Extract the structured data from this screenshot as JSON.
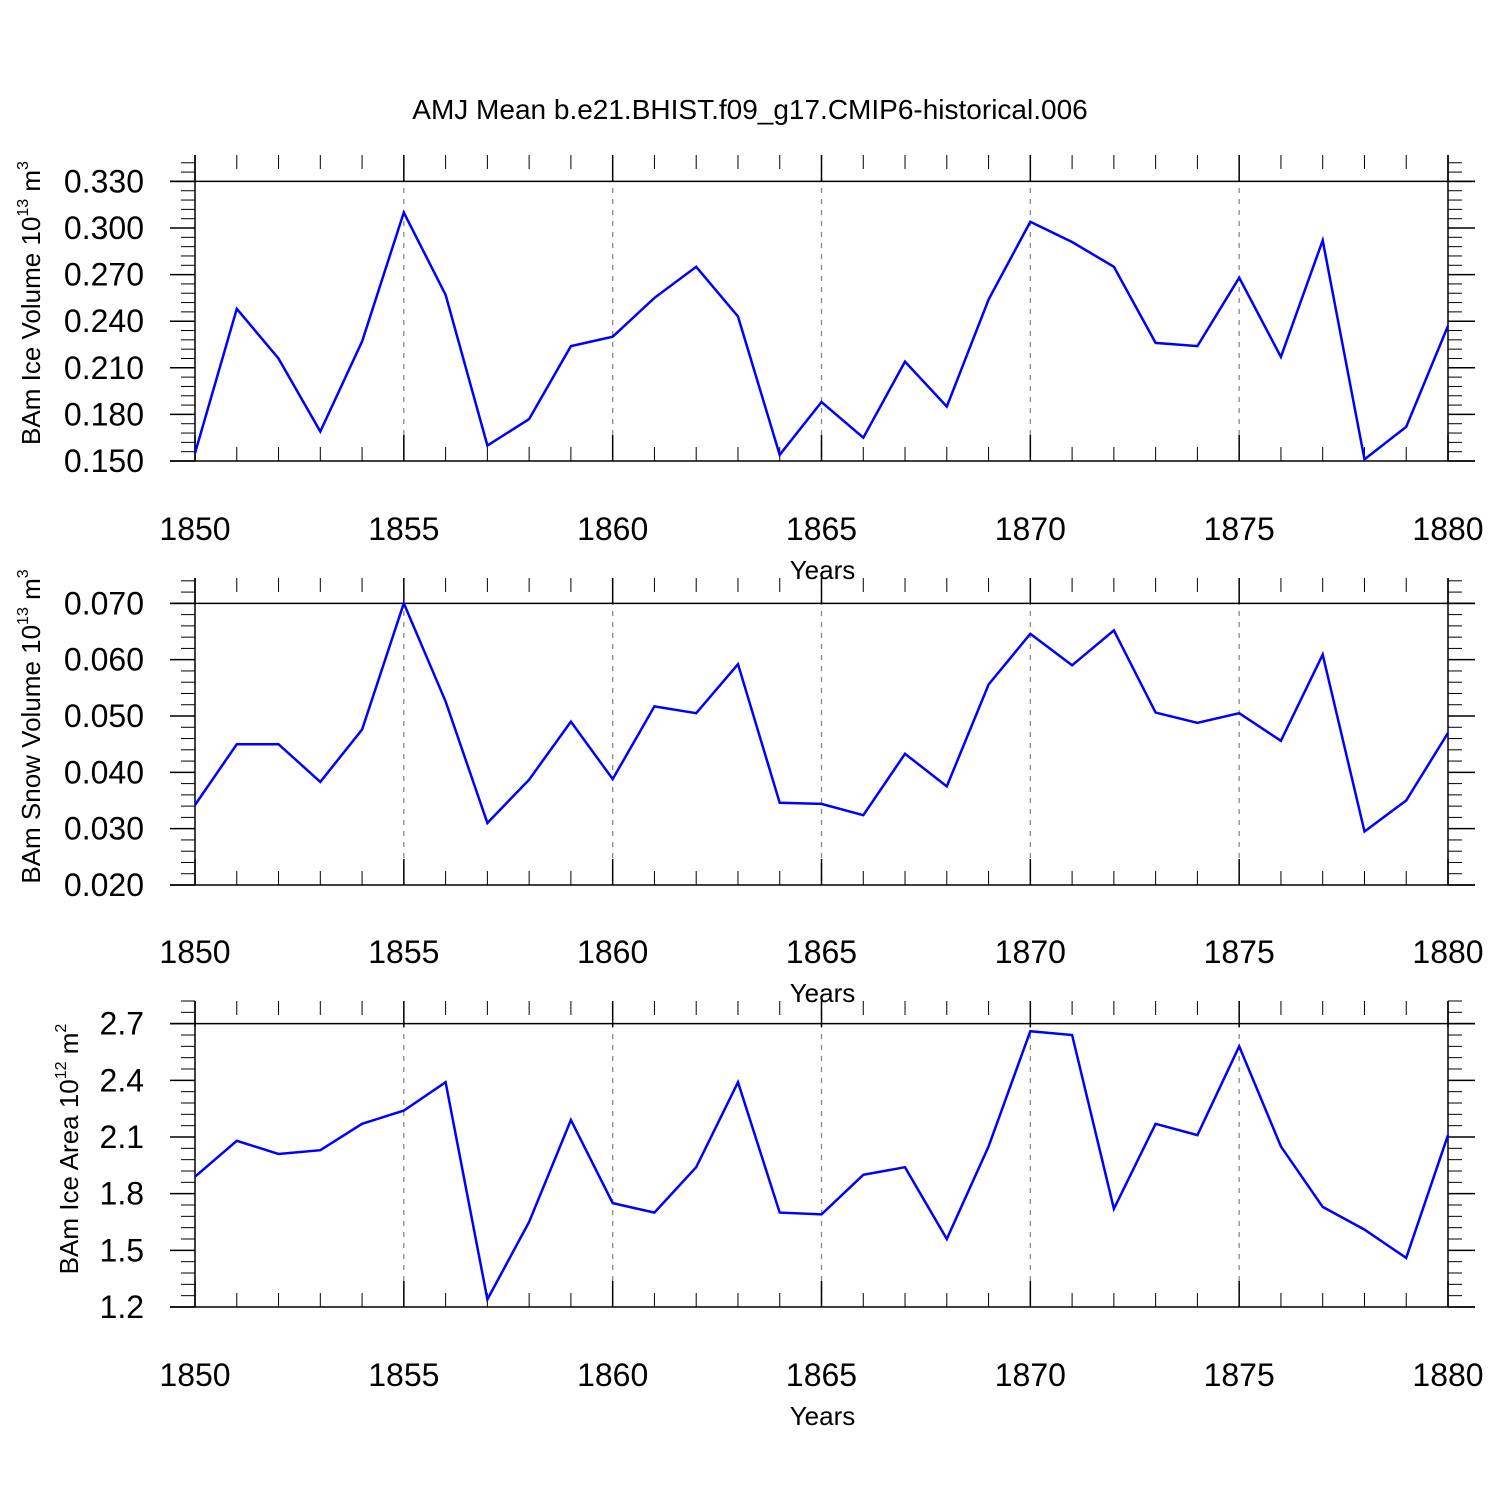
{
  "chart_data": [
    {
      "type": "line",
      "title": "AMJ Mean b.e21.BHIST.f09_g17.CMIP6-historical.006",
      "xlabel": "Years",
      "ylabel": "BAm Ice Volume 10",
      "ylabel_exp": "13",
      "ylabel_unit": " m",
      "ylabel_unit_exp": "3",
      "xlim": [
        1850,
        1880
      ],
      "ylim": [
        0.15,
        0.347
      ],
      "x_ticks": [
        "1850",
        "1855",
        "1860",
        "1865",
        "1870",
        "1875",
        "1880"
      ],
      "y_ticks": [
        "0.150",
        "0.180",
        "0.210",
        "0.240",
        "0.270",
        "0.300",
        "0.330"
      ],
      "y_tick_values": [
        0.15,
        0.18,
        0.21,
        0.24,
        0.27,
        0.3,
        0.33
      ],
      "grid": "vertical dashed at major x ticks",
      "series_color": "#0000ff",
      "x": [
        1850,
        1851,
        1852,
        1853,
        1854,
        1855,
        1856,
        1857,
        1858,
        1859,
        1860,
        1861,
        1862,
        1863,
        1864,
        1865,
        1866,
        1867,
        1868,
        1869,
        1870,
        1871,
        1872,
        1873,
        1874,
        1875,
        1876,
        1877,
        1878,
        1879,
        1880
      ],
      "values": [
        0.155,
        0.248,
        0.216,
        0.169,
        0.227,
        0.31,
        0.257,
        0.16,
        0.177,
        0.224,
        0.23,
        0.255,
        0.275,
        0.243,
        0.154,
        0.188,
        0.165,
        0.214,
        0.185,
        0.254,
        0.304,
        0.291,
        0.275,
        0.226,
        0.224,
        0.268,
        0.217,
        0.292,
        0.151,
        0.172,
        0.237
      ]
    },
    {
      "type": "line",
      "xlabel": "Years",
      "ylabel": "BAm Snow Volume 10",
      "ylabel_exp": "13",
      "ylabel_unit": " m",
      "ylabel_unit_exp": "3",
      "xlim": [
        1850,
        1880
      ],
      "ylim": [
        0.02,
        0.0745
      ],
      "x_ticks": [
        "1850",
        "1855",
        "1860",
        "1865",
        "1870",
        "1875",
        "1880"
      ],
      "y_ticks": [
        "0.020",
        "0.030",
        "0.040",
        "0.050",
        "0.060",
        "0.070"
      ],
      "y_tick_values": [
        0.02,
        0.03,
        0.04,
        0.05,
        0.06,
        0.07
      ],
      "grid": "vertical dashed at major x ticks",
      "series_color": "#0000ff",
      "x": [
        1850,
        1851,
        1852,
        1853,
        1854,
        1855,
        1856,
        1857,
        1858,
        1859,
        1860,
        1861,
        1862,
        1863,
        1864,
        1865,
        1866,
        1867,
        1868,
        1869,
        1870,
        1871,
        1872,
        1873,
        1874,
        1875,
        1876,
        1877,
        1878,
        1879,
        1880
      ],
      "values": [
        0.0342,
        0.045,
        0.045,
        0.0383,
        0.0476,
        0.07,
        0.0526,
        0.031,
        0.0387,
        0.049,
        0.0388,
        0.0517,
        0.0505,
        0.0592,
        0.0346,
        0.0344,
        0.0324,
        0.0433,
        0.0375,
        0.0556,
        0.0646,
        0.059,
        0.0652,
        0.0506,
        0.0488,
        0.0505,
        0.0456,
        0.0609,
        0.0295,
        0.035,
        0.047
      ]
    },
    {
      "type": "line",
      "xlabel": "Years",
      "ylabel": "BAm Ice Area 10",
      "ylabel_exp": "12",
      "ylabel_unit": " m",
      "ylabel_unit_exp": "2",
      "xlim": [
        1850,
        1880
      ],
      "ylim": [
        1.2,
        2.82
      ],
      "x_ticks": [
        "1850",
        "1855",
        "1860",
        "1865",
        "1870",
        "1875",
        "1880"
      ],
      "y_ticks": [
        "1.2",
        "1.5",
        "1.8",
        "2.1",
        "2.4",
        "2.7"
      ],
      "y_tick_values": [
        1.2,
        1.5,
        1.8,
        2.1,
        2.4,
        2.7
      ],
      "grid": "vertical dashed at major x ticks",
      "series_color": "#0000ff",
      "x": [
        1850,
        1851,
        1852,
        1853,
        1854,
        1855,
        1856,
        1857,
        1858,
        1859,
        1860,
        1861,
        1862,
        1863,
        1864,
        1865,
        1866,
        1867,
        1868,
        1869,
        1870,
        1871,
        1872,
        1873,
        1874,
        1875,
        1876,
        1877,
        1878,
        1879,
        1880
      ],
      "values": [
        1.89,
        2.08,
        2.01,
        2.03,
        2.17,
        2.24,
        2.39,
        1.24,
        1.65,
        2.19,
        1.75,
        1.7,
        1.94,
        2.39,
        1.7,
        1.69,
        1.9,
        1.94,
        1.56,
        2.05,
        2.66,
        2.64,
        1.72,
        2.17,
        2.11,
        2.58,
        2.05,
        1.73,
        1.61,
        1.46,
        2.11
      ]
    }
  ]
}
